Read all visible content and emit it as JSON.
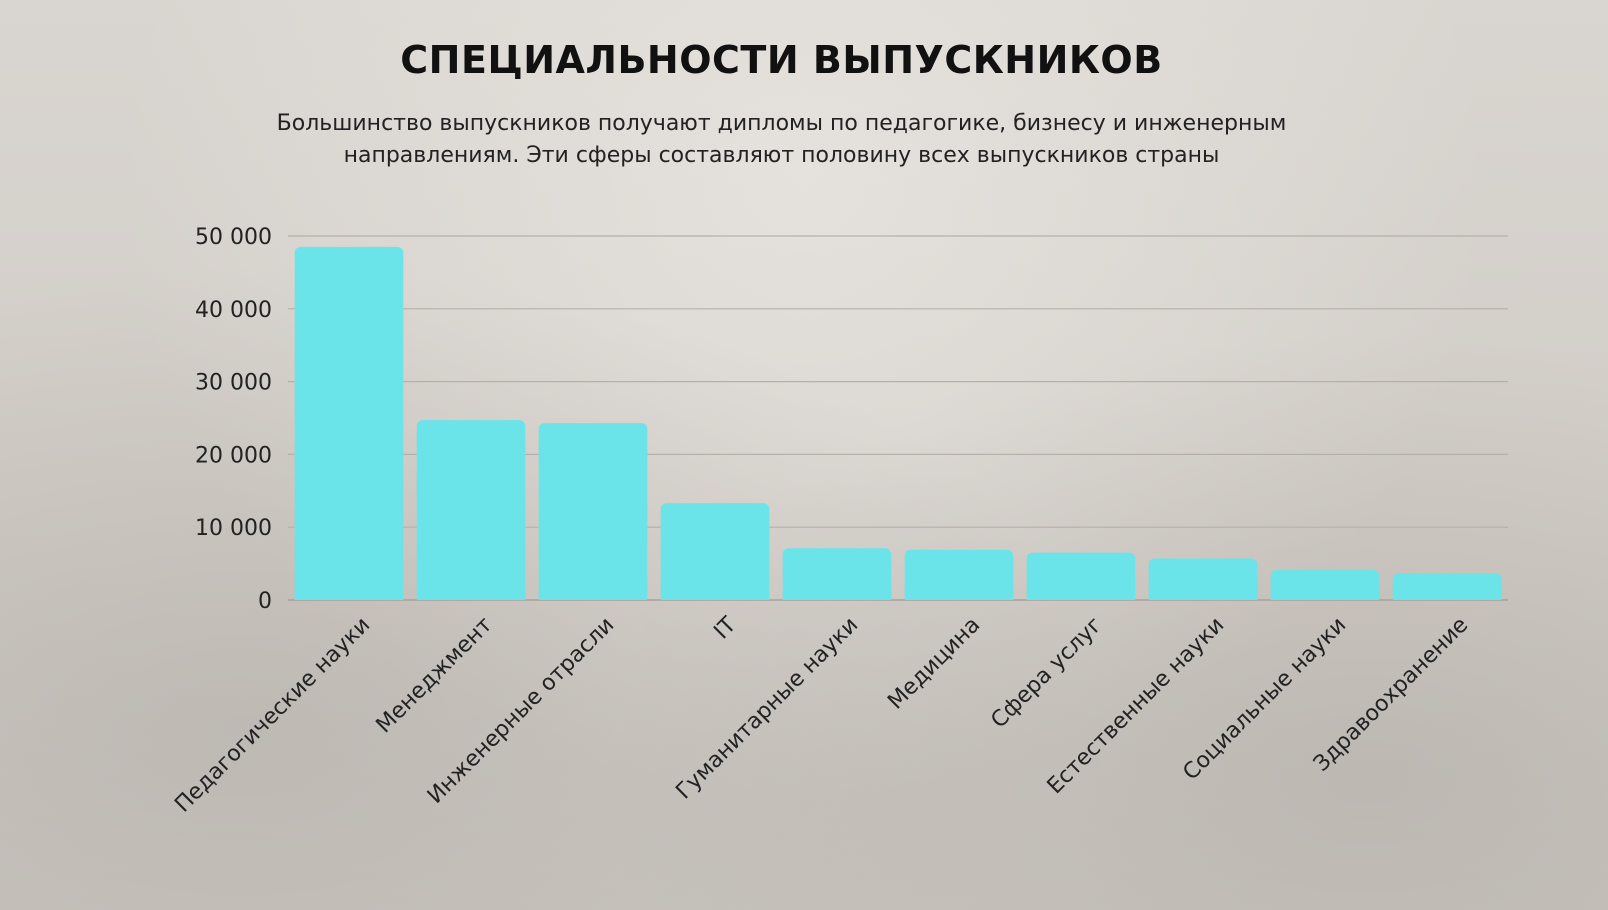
{
  "title": "СПЕЦИАЛЬНОСТИ ВЫПУСКНИКОВ",
  "subtitle": "Большинство выпускников получают дипломы по педагогике, бизнесу и инженерным направлениям. Эти сферы составляют половину всех выпускников страны",
  "colors": {
    "bar": "#6ae4e8",
    "grid": "#b5b0aa",
    "text": "#222222"
  },
  "chart_data": {
    "type": "bar",
    "categories": [
      "Педагогические науки",
      "Менеджмент",
      "Инженерные отрасли",
      "IT",
      "Гуманитарные науки",
      "Медицина",
      "Сфера услуг",
      "Естественные науки",
      "Социальные науки",
      "Здравоохранение"
    ],
    "values": [
      48500,
      24700,
      24300,
      13300,
      7100,
      6900,
      6500,
      5700,
      4100,
      3700
    ],
    "ylim": [
      0,
      50000
    ],
    "yticks": [
      0,
      10000,
      20000,
      30000,
      40000,
      50000
    ],
    "ytick_labels": [
      "0",
      "10 000",
      "20 000",
      "30 000",
      "40 000",
      "50 000"
    ],
    "grid": true,
    "legend": "none"
  }
}
